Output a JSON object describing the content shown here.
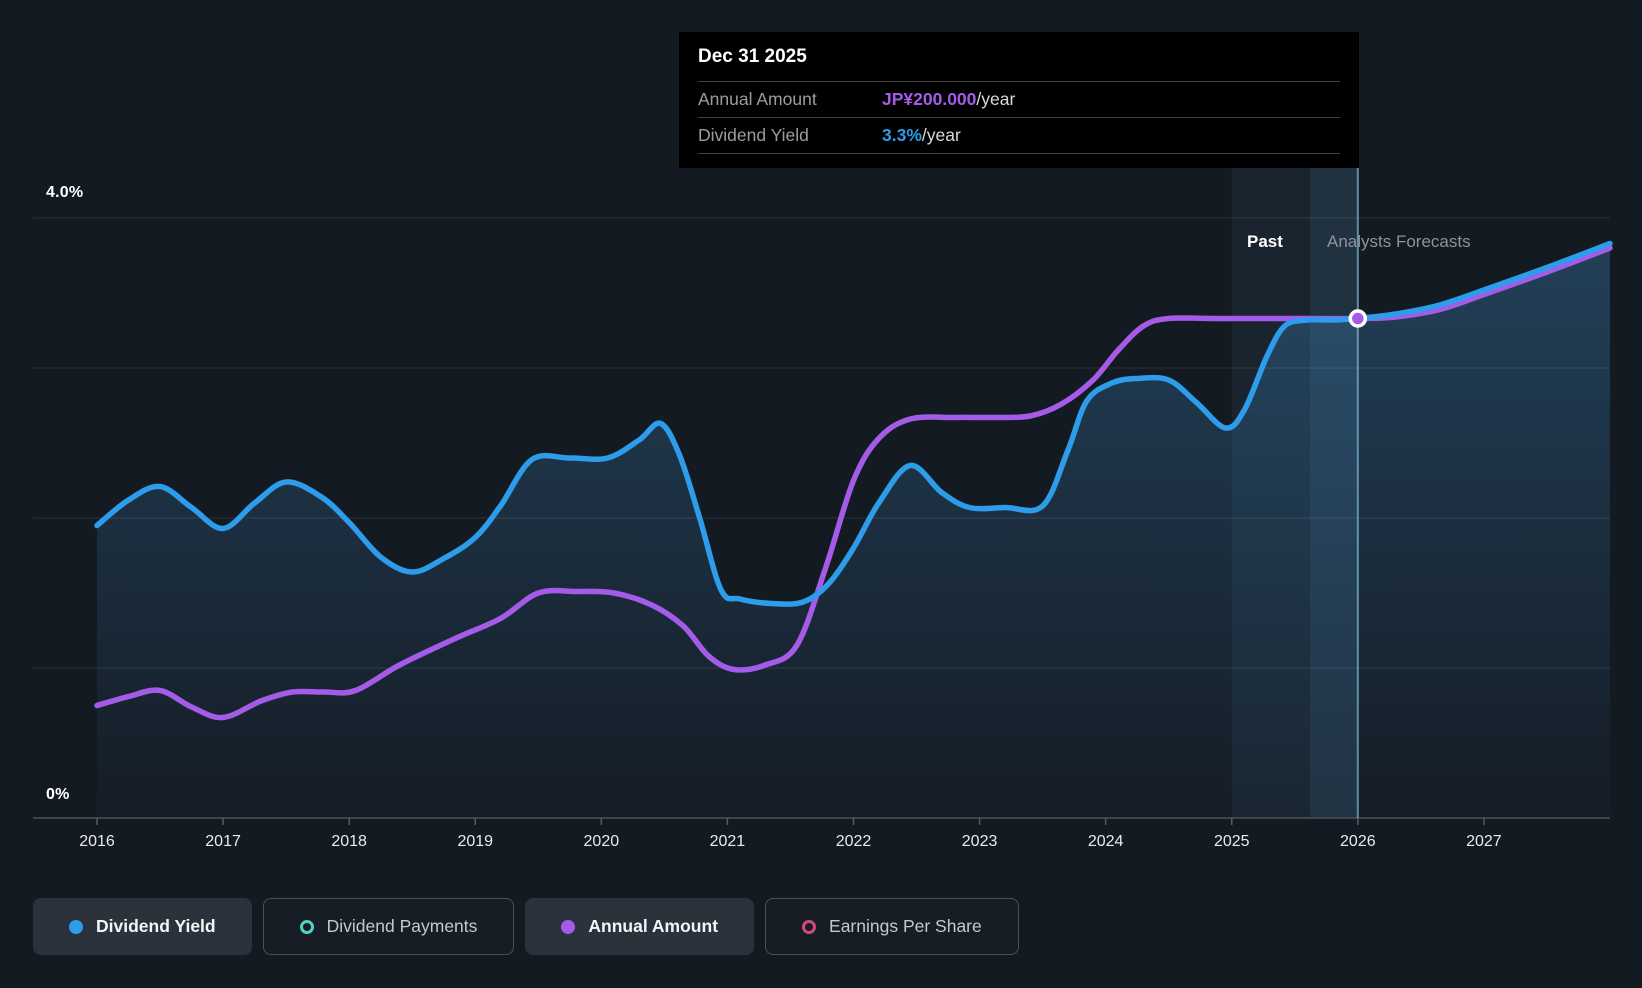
{
  "page": {
    "background": "#141a22"
  },
  "y_axis": {
    "top_label": "4.0%",
    "zero_label": "0%"
  },
  "x_axis": {
    "ticks": [
      "2016",
      "2017",
      "2018",
      "2019",
      "2020",
      "2021",
      "2022",
      "2023",
      "2024",
      "2025",
      "2026",
      "2027"
    ]
  },
  "annotations": {
    "past": "Past",
    "forecast": "Analysts Forecasts"
  },
  "tooltip": {
    "date": "Dec 31 2025",
    "rows": [
      {
        "label": "Annual Amount",
        "value": "JP¥200.000",
        "suffix": "/year",
        "color": "#a45ce8"
      },
      {
        "label": "Dividend Yield",
        "value": "3.3%",
        "suffix": "/year",
        "color": "#2d9cea"
      }
    ]
  },
  "legend": {
    "items": [
      {
        "label": "Dividend Yield",
        "color": "#2d9cea",
        "swatch": "filled",
        "button": "solid"
      },
      {
        "label": "Dividend Payments",
        "color": "#4fd1c5",
        "swatch": "outline",
        "button": "outline"
      },
      {
        "label": "Annual Amount",
        "color": "#a45ce8",
        "swatch": "filled",
        "button": "solid"
      },
      {
        "label": "Earnings Per Share",
        "color": "#d8467f",
        "swatch": "outline",
        "button": "outline"
      }
    ]
  },
  "chart_data": {
    "type": "line",
    "title": "Dividend yield history and forecast",
    "x_range": [
      2016,
      2028
    ],
    "y_range_pct": [
      0,
      4.39
    ],
    "y_gridlines_pct": [
      1,
      2,
      3,
      4
    ],
    "grid": true,
    "legend_position": "bottom",
    "divider_year": 2026,
    "highlight_band": {
      "from": 2025.0,
      "mid": 2025.62,
      "to": 2026.0
    },
    "marker": {
      "year": 2026.0,
      "value": 3.33,
      "color": "#a45ce8",
      "tooltip_date": "Dec 31 2025"
    },
    "series": [
      {
        "name": "Annual Amount",
        "color": "#a45ce8",
        "fill": false,
        "points": [
          [
            2016.0,
            0.75
          ],
          [
            2016.25,
            0.81
          ],
          [
            2016.5,
            0.85
          ],
          [
            2016.75,
            0.74
          ],
          [
            2017.0,
            0.67
          ],
          [
            2017.3,
            0.78
          ],
          [
            2017.55,
            0.84
          ],
          [
            2017.8,
            0.84
          ],
          [
            2018.05,
            0.85
          ],
          [
            2018.4,
            1.02
          ],
          [
            2018.85,
            1.2
          ],
          [
            2019.2,
            1.33
          ],
          [
            2019.5,
            1.5
          ],
          [
            2019.8,
            1.51
          ],
          [
            2020.1,
            1.5
          ],
          [
            2020.4,
            1.42
          ],
          [
            2020.65,
            1.28
          ],
          [
            2020.85,
            1.08
          ],
          [
            2021.05,
            0.99
          ],
          [
            2021.3,
            1.02
          ],
          [
            2021.55,
            1.15
          ],
          [
            2021.78,
            1.67
          ],
          [
            2022.0,
            2.25
          ],
          [
            2022.2,
            2.53
          ],
          [
            2022.45,
            2.66
          ],
          [
            2022.8,
            2.67
          ],
          [
            2023.1,
            2.67
          ],
          [
            2023.4,
            2.68
          ],
          [
            2023.65,
            2.76
          ],
          [
            2023.9,
            2.92
          ],
          [
            2024.1,
            3.12
          ],
          [
            2024.3,
            3.28
          ],
          [
            2024.5,
            3.33
          ],
          [
            2024.9,
            3.33
          ],
          [
            2025.4,
            3.33
          ],
          [
            2026.0,
            3.33
          ],
          [
            2026.3,
            3.34
          ],
          [
            2026.65,
            3.39
          ],
          [
            2027.0,
            3.49
          ],
          [
            2027.5,
            3.64
          ],
          [
            2028.0,
            3.8
          ]
        ]
      },
      {
        "name": "Dividend Yield",
        "color": "#2d9cea",
        "fill": true,
        "points": [
          [
            2016.0,
            1.95
          ],
          [
            2016.25,
            2.12
          ],
          [
            2016.5,
            2.21
          ],
          [
            2016.75,
            2.07
          ],
          [
            2017.0,
            1.93
          ],
          [
            2017.25,
            2.1
          ],
          [
            2017.5,
            2.24
          ],
          [
            2017.78,
            2.14
          ],
          [
            2018.0,
            1.97
          ],
          [
            2018.25,
            1.74
          ],
          [
            2018.5,
            1.64
          ],
          [
            2018.75,
            1.73
          ],
          [
            2019.0,
            1.87
          ],
          [
            2019.2,
            2.08
          ],
          [
            2019.45,
            2.39
          ],
          [
            2019.75,
            2.4
          ],
          [
            2020.05,
            2.4
          ],
          [
            2020.3,
            2.52
          ],
          [
            2020.47,
            2.63
          ],
          [
            2020.62,
            2.42
          ],
          [
            2020.78,
            2.0
          ],
          [
            2020.95,
            1.52
          ],
          [
            2021.1,
            1.46
          ],
          [
            2021.35,
            1.43
          ],
          [
            2021.6,
            1.44
          ],
          [
            2021.8,
            1.56
          ],
          [
            2022.0,
            1.8
          ],
          [
            2022.2,
            2.1
          ],
          [
            2022.45,
            2.35
          ],
          [
            2022.7,
            2.17
          ],
          [
            2022.92,
            2.07
          ],
          [
            2023.2,
            2.07
          ],
          [
            2023.5,
            2.08
          ],
          [
            2023.7,
            2.45
          ],
          [
            2023.85,
            2.78
          ],
          [
            2024.05,
            2.9
          ],
          [
            2024.25,
            2.93
          ],
          [
            2024.5,
            2.92
          ],
          [
            2024.72,
            2.77
          ],
          [
            2024.95,
            2.6
          ],
          [
            2025.1,
            2.72
          ],
          [
            2025.28,
            3.08
          ],
          [
            2025.42,
            3.28
          ],
          [
            2025.6,
            3.32
          ],
          [
            2025.8,
            3.32
          ],
          [
            2026.0,
            3.33
          ],
          [
            2026.3,
            3.36
          ],
          [
            2026.65,
            3.42
          ],
          [
            2027.0,
            3.52
          ],
          [
            2027.5,
            3.67
          ],
          [
            2028.0,
            3.83
          ]
        ]
      }
    ]
  }
}
